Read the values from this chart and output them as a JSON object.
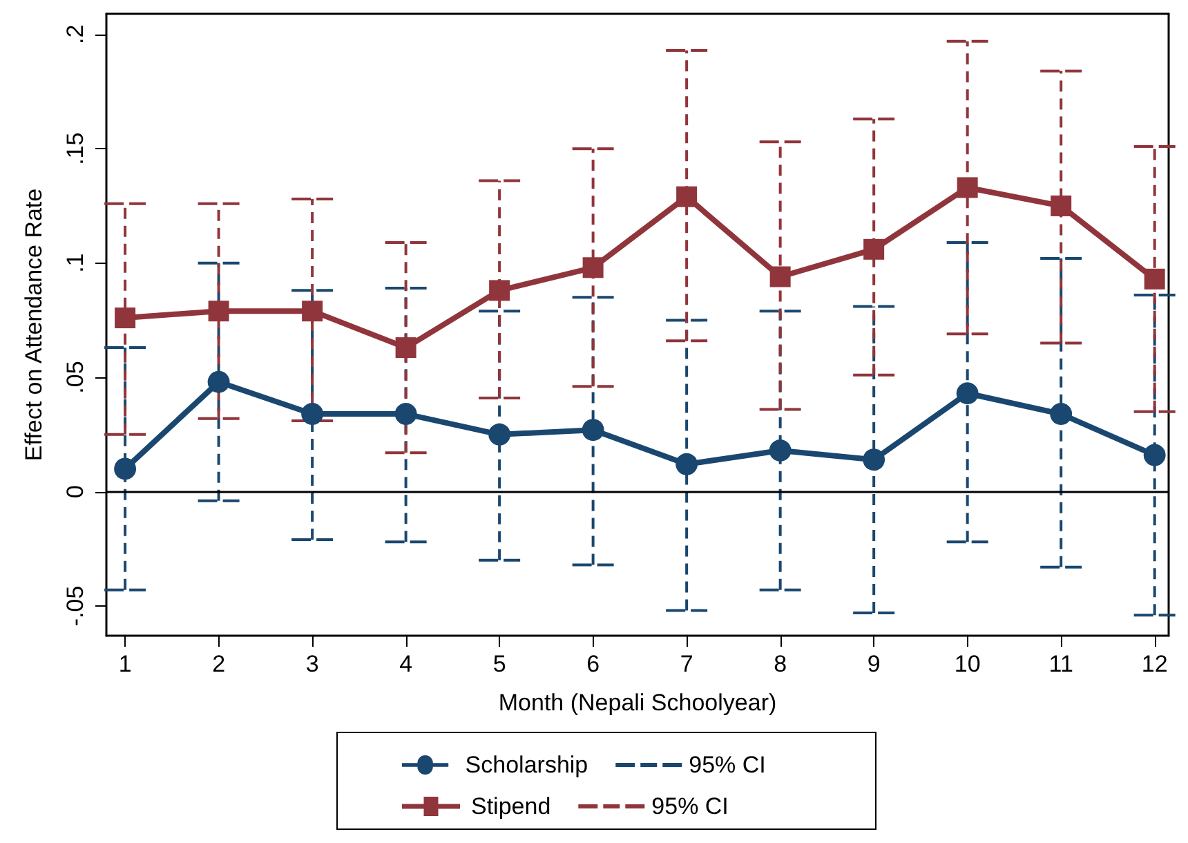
{
  "chart_data": {
    "type": "line",
    "xlabel": "Month (Nepali Schoolyear)",
    "ylabel": "Effect on Attendance Rate",
    "x": [
      1,
      2,
      3,
      4,
      5,
      6,
      7,
      8,
      9,
      10,
      11,
      12
    ],
    "xlim": [
      0.8,
      12.15
    ],
    "xticks": [
      1,
      2,
      3,
      4,
      5,
      6,
      7,
      8,
      9,
      10,
      11,
      12
    ],
    "ylim": [
      -0.063,
      0.209
    ],
    "yticks": [
      {
        "value": -0.05,
        "label": "-.05"
      },
      0,
      {
        "value": 0.05,
        "label": ".05"
      },
      {
        "value": 0.1,
        "label": ".1"
      },
      {
        "value": 0.15,
        "label": ".15"
      },
      {
        "value": 0.2,
        "label": ".2"
      }
    ],
    "grid": false,
    "legend": "bottom",
    "line_style": "solid",
    "series": [
      {
        "name": "Scholarship",
        "color": "#1a476f",
        "marker": "circle",
        "values": [
          0.01,
          0.048,
          0.034,
          0.034,
          0.025,
          0.027,
          0.012,
          0.018,
          0.014,
          0.043,
          0.034,
          0.016
        ],
        "errors": [
          [
            -0.043,
            0.063
          ],
          [
            -0.004,
            0.1
          ],
          [
            -0.021,
            0.088
          ],
          [
            -0.022,
            0.089
          ],
          [
            -0.03,
            0.079
          ],
          [
            -0.032,
            0.085
          ],
          [
            -0.052,
            0.075
          ],
          [
            -0.043,
            0.079
          ],
          [
            -0.053,
            0.081
          ],
          [
            -0.022,
            0.109
          ],
          [
            -0.033,
            0.102
          ],
          [
            -0.054,
            0.086
          ]
        ]
      },
      {
        "name": "Stipend",
        "color": "#90353b",
        "marker": "square",
        "values": [
          0.076,
          0.079,
          0.079,
          0.063,
          0.088,
          0.098,
          0.129,
          0.094,
          0.106,
          0.133,
          0.125,
          0.093
        ],
        "errors": [
          [
            0.025,
            0.126
          ],
          [
            0.032,
            0.126
          ],
          [
            0.031,
            0.128
          ],
          [
            0.017,
            0.109
          ],
          [
            0.041,
            0.136
          ],
          [
            0.046,
            0.15
          ],
          [
            0.066,
            0.193
          ],
          [
            0.036,
            0.153
          ],
          [
            0.051,
            0.163
          ],
          [
            0.069,
            0.197
          ],
          [
            0.065,
            0.184
          ],
          [
            0.035,
            0.151
          ]
        ]
      }
    ],
    "annotations": [
      "95% CI",
      "95% CI"
    ],
    "ref_lines": [
      {
        "axis": "y",
        "value": 0,
        "color": "#000000"
      }
    ]
  }
}
